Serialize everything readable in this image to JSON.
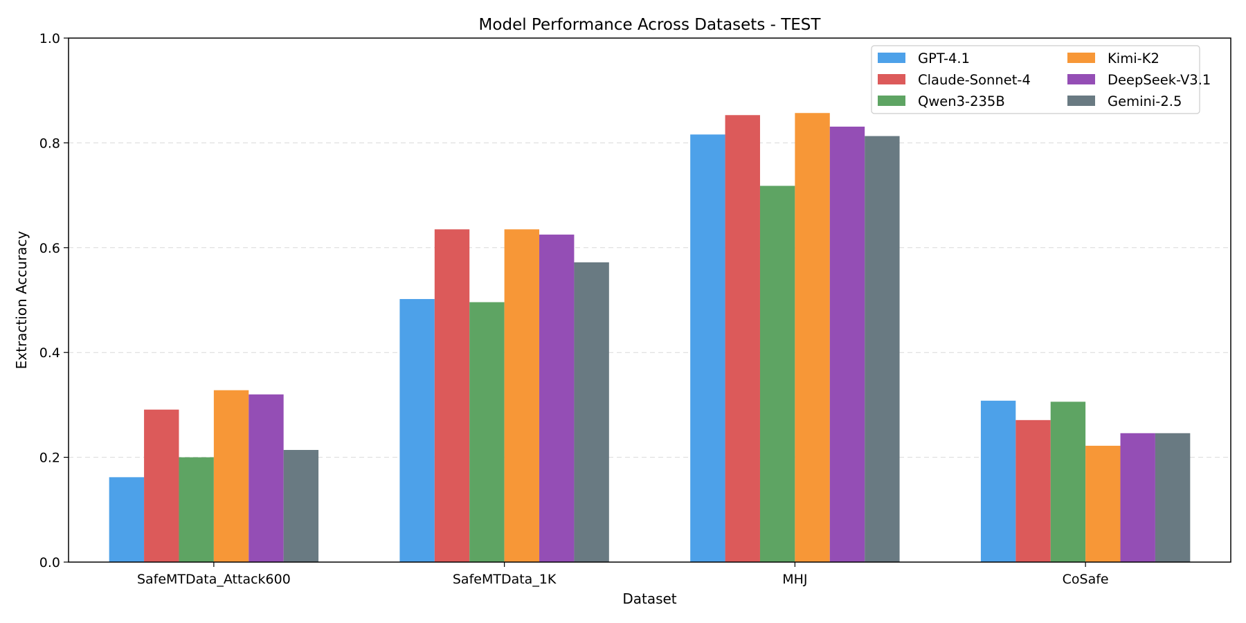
{
  "chart_data": {
    "type": "bar",
    "title": "Model Performance Across Datasets - TEST",
    "xlabel": "Dataset",
    "ylabel": "Extraction Accuracy",
    "ylim": [
      0,
      1.0
    ],
    "yticks": [
      "0.0",
      "0.2",
      "0.4",
      "0.6",
      "0.8",
      "1.0"
    ],
    "grid": "y-dashed",
    "legend_position": "top-right",
    "legend_columns": 2,
    "categories": [
      "SafeMTData_Attack600",
      "SafeMTData_1K",
      "MHJ",
      "CoSafe"
    ],
    "series": [
      {
        "name": "GPT-4.1",
        "color": "#4da1e9",
        "values": [
          0.162,
          0.502,
          0.816,
          0.308
        ]
      },
      {
        "name": "Claude-Sonnet-4",
        "color": "#dc5a5a",
        "values": [
          0.291,
          0.635,
          0.853,
          0.271
        ]
      },
      {
        "name": "Qwen3-235B",
        "color": "#5ea463",
        "values": [
          0.2,
          0.496,
          0.718,
          0.306
        ]
      },
      {
        "name": "Kimi-K2",
        "color": "#f79737",
        "values": [
          0.328,
          0.635,
          0.857,
          0.222
        ]
      },
      {
        "name": "DeepSeek-V3.1",
        "color": "#944eb5",
        "values": [
          0.32,
          0.625,
          0.831,
          0.246
        ]
      },
      {
        "name": "Gemini-2.5",
        "color": "#697a82",
        "values": [
          0.214,
          0.572,
          0.813,
          0.246
        ]
      }
    ]
  }
}
